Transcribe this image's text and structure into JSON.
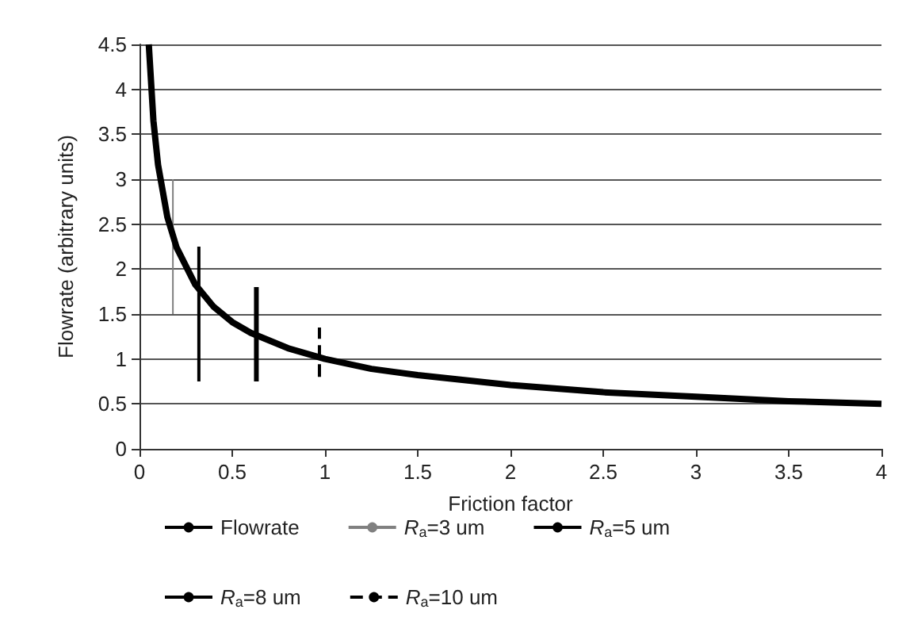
{
  "chart_data": {
    "type": "line",
    "xlabel": "Friction factor",
    "ylabel": "Flowrate (arbitrary units)",
    "xlim": [
      0,
      4
    ],
    "xticks": [
      0,
      0.5,
      1,
      1.5,
      2,
      2.5,
      3,
      3.5,
      4
    ],
    "ylim": [
      0,
      4.5
    ],
    "yticks": [
      0,
      0.5,
      1,
      1.5,
      2,
      2.5,
      3,
      3.5,
      4,
      4.5
    ],
    "grid": "y",
    "legend": "bottom",
    "marker": "none",
    "series": [
      {
        "name": "Flowrate",
        "color": "#000000",
        "line_style": "solid",
        "x": [
          0.05,
          0.075,
          0.1,
          0.15,
          0.2,
          0.3,
          0.4,
          0.5,
          0.6,
          0.8,
          1,
          1.25,
          1.5,
          2,
          2.5,
          3,
          3.5,
          4
        ],
        "values": [
          4.5,
          3.65,
          3.16,
          2.58,
          2.24,
          1.83,
          1.58,
          1.41,
          1.29,
          1.12,
          1.0,
          0.89,
          0.82,
          0.71,
          0.63,
          0.58,
          0.53,
          0.5
        ]
      },
      {
        "name": "R$_{a}$=3 um",
        "color": "#808080",
        "line_style": "solid",
        "x": [
          0.18,
          0.18
        ],
        "values": [
          1.5,
          3.0
        ]
      },
      {
        "name": "R$_{a}$=5 um",
        "color": "#000000",
        "line_style": "solid",
        "x": [
          0.32,
          0.32
        ],
        "values": [
          0.75,
          2.25
        ]
      },
      {
        "name": "R$_{a}$=8 um",
        "color": "#000000",
        "line_style": "solid",
        "x": [
          0.63,
          0.63
        ],
        "values": [
          0.75,
          1.8
        ]
      },
      {
        "name": "R$_{a}$=10 um",
        "color": "#000000",
        "line_style": "dashed",
        "x": [
          0.97,
          0.97
        ],
        "values": [
          0.8,
          1.35
        ]
      }
    ]
  }
}
